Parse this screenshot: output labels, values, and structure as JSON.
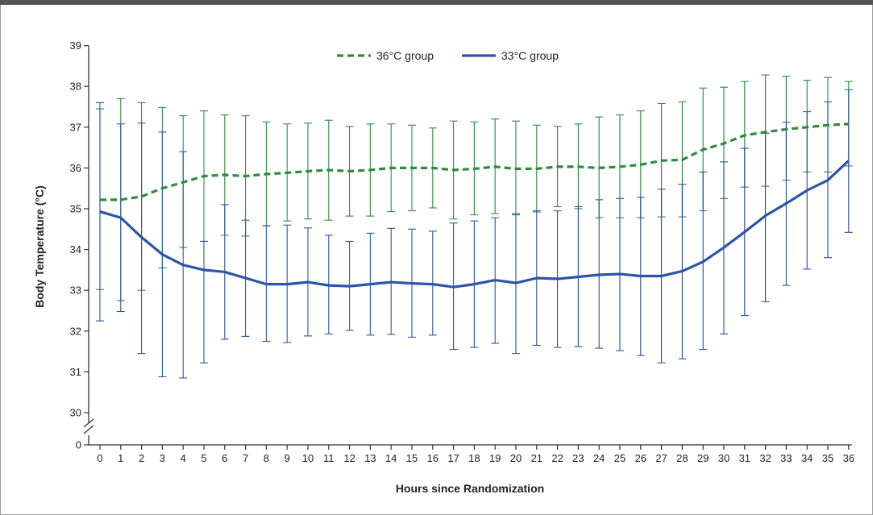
{
  "chart_data": {
    "type": "line",
    "title": "",
    "xlabel": "Hours since Randomization",
    "ylabel": "Body Temperature (°C)",
    "x": [
      0,
      1,
      2,
      3,
      4,
      5,
      6,
      7,
      8,
      9,
      10,
      11,
      12,
      13,
      14,
      15,
      16,
      17,
      18,
      19,
      20,
      21,
      22,
      23,
      24,
      25,
      26,
      27,
      28,
      29,
      30,
      31,
      32,
      33,
      34,
      35,
      36
    ],
    "xlim": [
      0,
      36
    ],
    "ylim": [
      30,
      39
    ],
    "y_axis_break": true,
    "y_ticks": [
      "0",
      "30",
      "31",
      "32",
      "33",
      "34",
      "35",
      "36",
      "37",
      "38",
      "39"
    ],
    "grid": false,
    "legend_position": "top-center",
    "series": [
      {
        "name": "36°C group",
        "color": "#2e8b3e",
        "style": "dashed",
        "values": [
          35.22,
          35.22,
          35.3,
          35.5,
          35.65,
          35.8,
          35.83,
          35.8,
          35.85,
          35.88,
          35.92,
          35.95,
          35.92,
          35.95,
          36.0,
          36.0,
          36.0,
          35.95,
          35.98,
          36.03,
          35.98,
          35.98,
          36.03,
          36.03,
          36.0,
          36.03,
          36.08,
          36.18,
          36.2,
          36.45,
          36.6,
          36.8,
          36.88,
          36.95,
          37.0,
          37.05,
          37.08
        ],
        "upper": [
          37.45,
          37.7,
          37.6,
          37.48,
          37.28,
          37.4,
          37.3,
          37.28,
          37.13,
          37.08,
          37.1,
          37.17,
          37.02,
          37.08,
          37.08,
          37.05,
          36.98,
          37.15,
          37.13,
          37.2,
          37.15,
          37.05,
          37.02,
          37.08,
          37.25,
          37.3,
          37.4,
          37.58,
          37.62,
          37.96,
          37.98,
          38.12,
          38.28,
          38.25,
          38.15,
          38.22,
          38.12
        ],
        "lower": [
          33.02,
          32.75,
          33.0,
          33.55,
          34.05,
          34.2,
          34.35,
          34.33,
          34.58,
          34.7,
          34.75,
          34.72,
          34.82,
          34.82,
          34.93,
          34.95,
          35.02,
          34.75,
          34.85,
          34.88,
          34.85,
          34.92,
          35.05,
          35.0,
          34.78,
          34.78,
          34.78,
          34.8,
          34.8,
          34.95,
          35.25,
          35.53,
          35.55,
          35.7,
          35.9,
          35.9,
          36.05
        ]
      },
      {
        "name": "33°C group",
        "color": "#2b55a6",
        "style": "solid",
        "values": [
          34.93,
          34.78,
          34.3,
          33.88,
          33.62,
          33.5,
          33.45,
          33.3,
          33.15,
          33.15,
          33.2,
          33.12,
          33.1,
          33.15,
          33.2,
          33.17,
          33.15,
          33.08,
          33.15,
          33.25,
          33.18,
          33.3,
          33.28,
          33.33,
          33.38,
          33.4,
          33.35,
          33.35,
          33.47,
          33.7,
          34.05,
          34.43,
          34.83,
          35.13,
          35.45,
          35.7,
          36.18
        ],
        "upper": [
          37.6,
          37.08,
          37.1,
          36.88,
          36.4,
          34.2,
          35.1,
          34.72,
          34.58,
          34.6,
          34.53,
          34.35,
          34.2,
          34.4,
          34.52,
          34.5,
          34.45,
          34.65,
          34.7,
          34.78,
          34.88,
          34.95,
          34.95,
          35.05,
          35.22,
          35.25,
          35.28,
          35.48,
          35.6,
          35.9,
          36.15,
          36.48,
          36.85,
          37.12,
          37.38,
          37.62,
          37.92
        ],
        "lower": [
          32.25,
          32.48,
          31.45,
          30.88,
          30.85,
          31.22,
          31.8,
          31.87,
          31.75,
          31.72,
          31.88,
          31.93,
          32.02,
          31.9,
          31.92,
          31.85,
          31.9,
          31.55,
          31.6,
          31.7,
          31.45,
          31.65,
          31.6,
          31.62,
          31.58,
          31.52,
          31.4,
          31.22,
          31.32,
          31.55,
          31.93,
          32.38,
          32.72,
          33.12,
          33.52,
          33.8,
          34.42
        ]
      }
    ]
  }
}
